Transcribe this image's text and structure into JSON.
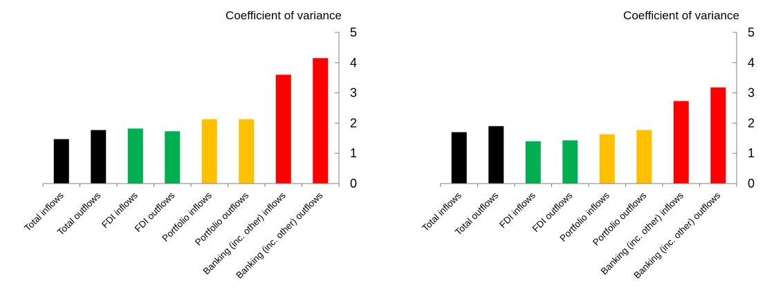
{
  "chart_data": [
    {
      "type": "bar",
      "ylabel": "Coefficient  of variance",
      "ylim": [
        0,
        5
      ],
      "yticks": [
        0,
        1,
        2,
        3,
        4,
        5
      ],
      "axis_position": "right",
      "grid": false,
      "categories": [
        "Total inflows",
        "Total outflows",
        "FDI inflows",
        "FDI outflows",
        "Portfolio inflows",
        "Portfolio outflows",
        "Banking (inc. other) inflows",
        "Banking (inc. other) outflows"
      ],
      "values": [
        1.47,
        1.77,
        1.82,
        1.73,
        2.13,
        2.13,
        3.6,
        4.15
      ],
      "colors": [
        "#000000",
        "#000000",
        "#00b050",
        "#00b050",
        "#ffc000",
        "#ffc000",
        "#ff0000",
        "#ff0000"
      ]
    },
    {
      "type": "bar",
      "ylabel": "Coefficient  of variance",
      "ylim": [
        0,
        5
      ],
      "yticks": [
        0,
        1,
        2,
        3,
        4,
        5
      ],
      "axis_position": "right",
      "grid": false,
      "categories": [
        "Total inflows",
        "Total outflows",
        "FDI inflows",
        "FDI outflows",
        "Portfolio inflows",
        "Portfolio outflows",
        "Banking (inc. other) inflows",
        "Banking (inc. other) outflows"
      ],
      "values": [
        1.7,
        1.9,
        1.4,
        1.43,
        1.63,
        1.77,
        2.73,
        3.18
      ],
      "colors": [
        "#000000",
        "#000000",
        "#00b050",
        "#00b050",
        "#ffc000",
        "#ffc000",
        "#ff0000",
        "#ff0000"
      ]
    }
  ]
}
